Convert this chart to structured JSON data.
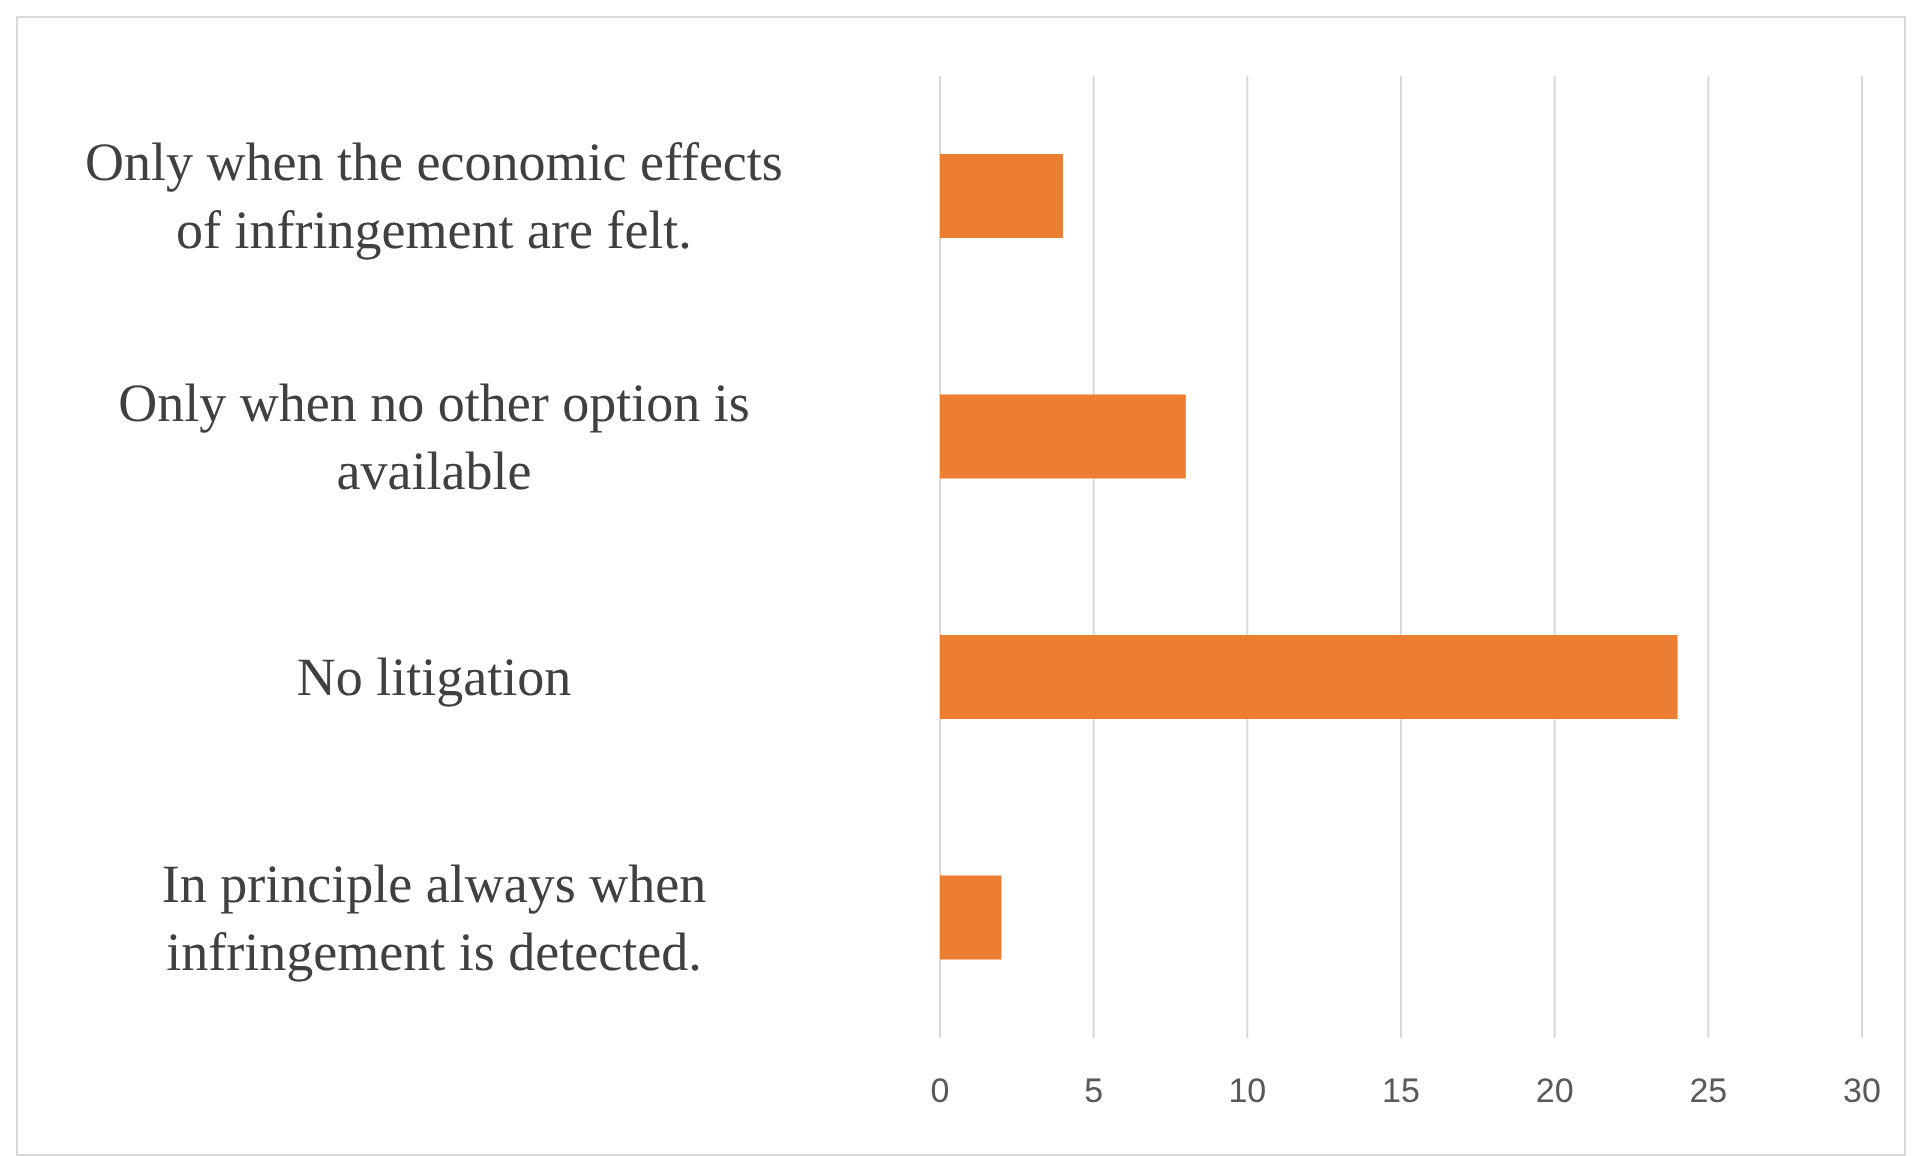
{
  "chart_data": {
    "type": "bar",
    "orientation": "horizontal",
    "categories": [
      "Only when the economic effects of infringement are felt.",
      "Only when no other option is available",
      "No litigation",
      "In principle always when infringement is detected."
    ],
    "values": [
      4,
      8,
      24,
      2
    ],
    "color": "#ed7d31",
    "xlim": [
      0,
      30
    ],
    "xticks": [
      0,
      5,
      10,
      15,
      20,
      25,
      30
    ],
    "grid": "x"
  }
}
